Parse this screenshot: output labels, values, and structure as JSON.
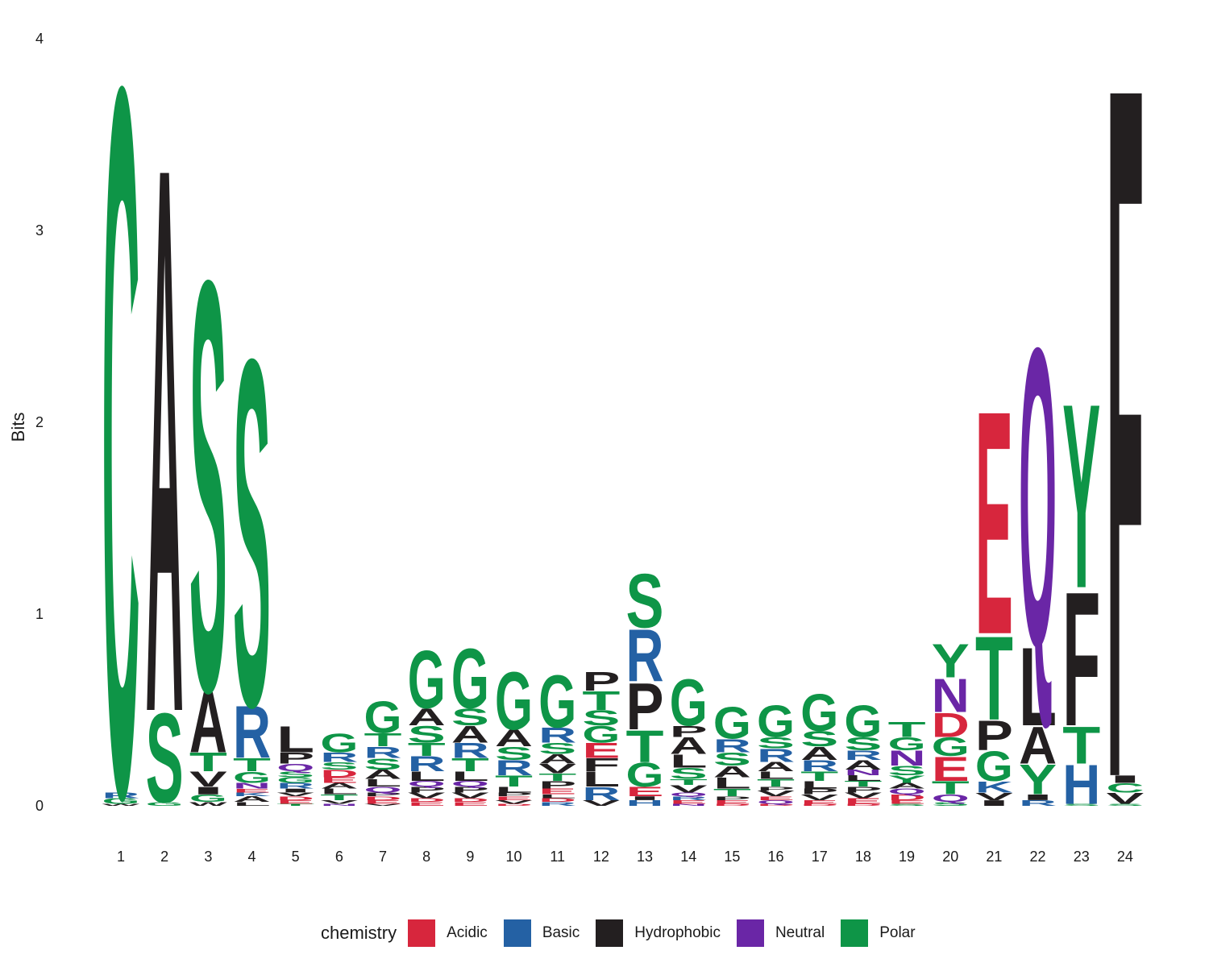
{
  "chart_data": {
    "type": "sequence-logo",
    "ylabel": "Bits",
    "xlabel": "",
    "ylim": [
      0,
      4
    ],
    "yticks": [
      0,
      1,
      2,
      3,
      4
    ],
    "grid": false,
    "legend_position": "bottom",
    "legend": {
      "title": "chemistry",
      "entries": [
        {
          "name": "Acidic",
          "color": "#D7263D"
        },
        {
          "name": "Basic",
          "color": "#2461A4"
        },
        {
          "name": "Hydrophobic",
          "color": "#231F20"
        },
        {
          "name": "Neutral",
          "color": "#6A26A6"
        },
        {
          "name": "Polar",
          "color": "#0E9547"
        }
      ]
    },
    "chemistry_groups": {
      "Acidic": [
        "D",
        "E"
      ],
      "Basic": [
        "H",
        "K",
        "R"
      ],
      "Hydrophobic": [
        "A",
        "F",
        "I",
        "L",
        "M",
        "P",
        "V",
        "W"
      ],
      "Neutral": [
        "N",
        "Q"
      ],
      "Polar": [
        "C",
        "G",
        "S",
        "T",
        "Y"
      ]
    },
    "positions": [
      {
        "pos": "1",
        "letters": [
          [
            "W",
            0.01
          ],
          [
            "G",
            0.03
          ],
          [
            "R",
            0.03
          ],
          [
            "C",
            3.8
          ]
        ]
      },
      {
        "pos": "2",
        "letters": [
          [
            "G",
            0.02
          ],
          [
            "S",
            0.48
          ],
          [
            "A",
            2.93
          ]
        ]
      },
      {
        "pos": "3",
        "letters": [
          [
            "W",
            0.02
          ],
          [
            "G",
            0.04
          ],
          [
            "I",
            0.04
          ],
          [
            "V",
            0.08
          ],
          [
            "T",
            0.1
          ],
          [
            "A",
            0.33
          ],
          [
            "S",
            2.2
          ]
        ]
      },
      {
        "pos": "4",
        "letters": [
          [
            "L",
            0.02
          ],
          [
            "A",
            0.03
          ],
          [
            "K",
            0.02
          ],
          [
            "E",
            0.02
          ],
          [
            "N",
            0.03
          ],
          [
            "G",
            0.06
          ],
          [
            "T",
            0.07
          ],
          [
            "R",
            0.28
          ],
          [
            "S",
            1.86
          ]
        ]
      },
      {
        "pos": "5",
        "letters": [
          [
            "T",
            0.01
          ],
          [
            "E",
            0.02
          ],
          [
            "D",
            0.02
          ],
          [
            "V",
            0.02
          ],
          [
            "I",
            0.02
          ],
          [
            "R",
            0.03
          ],
          [
            "G",
            0.03
          ],
          [
            "S",
            0.03
          ],
          [
            "Q",
            0.04
          ],
          [
            "P",
            0.06
          ],
          [
            "L",
            0.14
          ]
        ]
      },
      {
        "pos": "6",
        "letters": [
          [
            "N",
            0.01
          ],
          [
            "V",
            0.02
          ],
          [
            "T",
            0.03
          ],
          [
            "L",
            0.03
          ],
          [
            "A",
            0.03
          ],
          [
            "E",
            0.03
          ],
          [
            "D",
            0.04
          ],
          [
            "S",
            0.04
          ],
          [
            "R",
            0.05
          ],
          [
            "G",
            0.1
          ]
        ]
      },
      {
        "pos": "7",
        "letters": [
          [
            "V",
            0.01
          ],
          [
            "E",
            0.02
          ],
          [
            "D",
            0.02
          ],
          [
            "P",
            0.02
          ],
          [
            "Q",
            0.03
          ],
          [
            "L",
            0.04
          ],
          [
            "A",
            0.05
          ],
          [
            "S",
            0.06
          ],
          [
            "R",
            0.06
          ],
          [
            "T",
            0.07
          ],
          [
            "G",
            0.17
          ]
        ]
      },
      {
        "pos": "8",
        "letters": [
          [
            "E",
            0.02
          ],
          [
            "D",
            0.02
          ],
          [
            "V",
            0.03
          ],
          [
            "P",
            0.03
          ],
          [
            "Q",
            0.03
          ],
          [
            "L",
            0.05
          ],
          [
            "R",
            0.08
          ],
          [
            "T",
            0.07
          ],
          [
            "S",
            0.09
          ],
          [
            "A",
            0.09
          ],
          [
            "G",
            0.31
          ]
        ]
      },
      {
        "pos": "9",
        "letters": [
          [
            "E",
            0.02
          ],
          [
            "D",
            0.02
          ],
          [
            "V",
            0.03
          ],
          [
            "P",
            0.03
          ],
          [
            "Q",
            0.03
          ],
          [
            "L",
            0.05
          ],
          [
            "T",
            0.07
          ],
          [
            "R",
            0.08
          ],
          [
            "A",
            0.09
          ],
          [
            "S",
            0.09
          ],
          [
            "G",
            0.32
          ]
        ]
      },
      {
        "pos": "10",
        "letters": [
          [
            "D",
            0.01
          ],
          [
            "V",
            0.02
          ],
          [
            "E",
            0.02
          ],
          [
            "P",
            0.02
          ],
          [
            "L",
            0.03
          ],
          [
            "T",
            0.06
          ],
          [
            "R",
            0.08
          ],
          [
            "S",
            0.07
          ],
          [
            "A",
            0.09
          ],
          [
            "G",
            0.31
          ]
        ]
      },
      {
        "pos": "11",
        "letters": [
          [
            "R",
            0.02
          ],
          [
            "D",
            0.02
          ],
          [
            "L",
            0.02
          ],
          [
            "E",
            0.03
          ],
          [
            "P",
            0.04
          ],
          [
            "T",
            0.04
          ],
          [
            "V",
            0.05
          ],
          [
            "A",
            0.05
          ],
          [
            "S",
            0.06
          ],
          [
            "R",
            0.08
          ],
          [
            "G",
            0.28
          ]
        ]
      },
      {
        "pos": "12",
        "letters": [
          [
            "V",
            0.03
          ],
          [
            "R",
            0.07
          ],
          [
            "L",
            0.08
          ],
          [
            "F",
            0.07
          ],
          [
            "E",
            0.08
          ],
          [
            "G",
            0.09
          ],
          [
            "S",
            0.08
          ],
          [
            "T",
            0.1
          ],
          [
            "P",
            0.1
          ]
        ]
      },
      {
        "pos": "13",
        "letters": [
          [
            "H",
            0.03
          ],
          [
            "I",
            0.02
          ],
          [
            "E",
            0.05
          ],
          [
            "G",
            0.13
          ],
          [
            "T",
            0.17
          ],
          [
            "P",
            0.25
          ],
          [
            "R",
            0.28
          ],
          [
            "S",
            0.29
          ]
        ]
      },
      {
        "pos": "14",
        "letters": [
          [
            "N",
            0.01
          ],
          [
            "E",
            0.02
          ],
          [
            "R",
            0.02
          ],
          [
            "Q",
            0.02
          ],
          [
            "V",
            0.04
          ],
          [
            "T",
            0.03
          ],
          [
            "S",
            0.06
          ],
          [
            "L",
            0.07
          ],
          [
            "A",
            0.09
          ],
          [
            "P",
            0.06
          ],
          [
            "G",
            0.25
          ]
        ]
      },
      {
        "pos": "15",
        "letters": [
          [
            "D",
            0.01
          ],
          [
            "E",
            0.02
          ],
          [
            "P",
            0.02
          ],
          [
            "T",
            0.04
          ],
          [
            "L",
            0.06
          ],
          [
            "A",
            0.06
          ],
          [
            "S",
            0.07
          ],
          [
            "R",
            0.07
          ],
          [
            "G",
            0.17
          ]
        ]
      },
      {
        "pos": "16",
        "letters": [
          [
            "D",
            0.01
          ],
          [
            "Q",
            0.02
          ],
          [
            "E",
            0.02
          ],
          [
            "V",
            0.03
          ],
          [
            "P",
            0.02
          ],
          [
            "T",
            0.04
          ],
          [
            "L",
            0.04
          ],
          [
            "A",
            0.05
          ],
          [
            "R",
            0.07
          ],
          [
            "S",
            0.06
          ],
          [
            "G",
            0.17
          ]
        ]
      },
      {
        "pos": "17",
        "letters": [
          [
            "D",
            0.01
          ],
          [
            "E",
            0.02
          ],
          [
            "V",
            0.03
          ],
          [
            "P",
            0.03
          ],
          [
            "L",
            0.04
          ],
          [
            "T",
            0.05
          ],
          [
            "R",
            0.06
          ],
          [
            "A",
            0.07
          ],
          [
            "S",
            0.08
          ],
          [
            "G",
            0.2
          ]
        ]
      },
      {
        "pos": "18",
        "letters": [
          [
            "D",
            0.01
          ],
          [
            "E",
            0.03
          ],
          [
            "V",
            0.03
          ],
          [
            "P",
            0.03
          ],
          [
            "T",
            0.03
          ],
          [
            "L",
            0.03
          ],
          [
            "N",
            0.03
          ],
          [
            "A",
            0.05
          ],
          [
            "R",
            0.05
          ],
          [
            "S",
            0.07
          ],
          [
            "G",
            0.17
          ]
        ]
      },
      {
        "pos": "19",
        "letters": [
          [
            "S",
            0.01
          ],
          [
            "E",
            0.02
          ],
          [
            "D",
            0.03
          ],
          [
            "Q",
            0.03
          ],
          [
            "A",
            0.03
          ],
          [
            "Y",
            0.04
          ],
          [
            "S",
            0.05
          ],
          [
            "N",
            0.08
          ],
          [
            "G",
            0.07
          ],
          [
            "T",
            0.08
          ]
        ]
      },
      {
        "pos": "20",
        "letters": [
          [
            "S",
            0.02
          ],
          [
            "Q",
            0.04
          ],
          [
            "T",
            0.07
          ],
          [
            "E",
            0.13
          ],
          [
            "G",
            0.1
          ],
          [
            "D",
            0.13
          ],
          [
            "N",
            0.18
          ],
          [
            "Y",
            0.18
          ]
        ]
      },
      {
        "pos": "21",
        "letters": [
          [
            "I",
            0.03
          ],
          [
            "V",
            0.04
          ],
          [
            "K",
            0.06
          ],
          [
            "G",
            0.16
          ],
          [
            "P",
            0.16
          ],
          [
            "T",
            0.45
          ],
          [
            "E",
            1.2
          ]
        ]
      },
      {
        "pos": "22",
        "letters": [
          [
            "R",
            0.03
          ],
          [
            "I",
            0.03
          ],
          [
            "Y",
            0.16
          ],
          [
            "A",
            0.2
          ],
          [
            "L",
            0.42
          ],
          [
            "Q",
            1.6
          ]
        ]
      },
      {
        "pos": "23",
        "letters": [
          [
            "S",
            0.01
          ],
          [
            "H",
            0.21
          ],
          [
            "T",
            0.2
          ],
          [
            "F",
            0.72
          ],
          [
            "Y",
            0.99
          ]
        ]
      },
      {
        "pos": "24",
        "letters": [
          [
            "S",
            0.01
          ],
          [
            "V",
            0.06
          ],
          [
            "C",
            0.05
          ],
          [
            "I",
            0.04
          ],
          [
            "F",
            3.72
          ]
        ]
      }
    ]
  }
}
